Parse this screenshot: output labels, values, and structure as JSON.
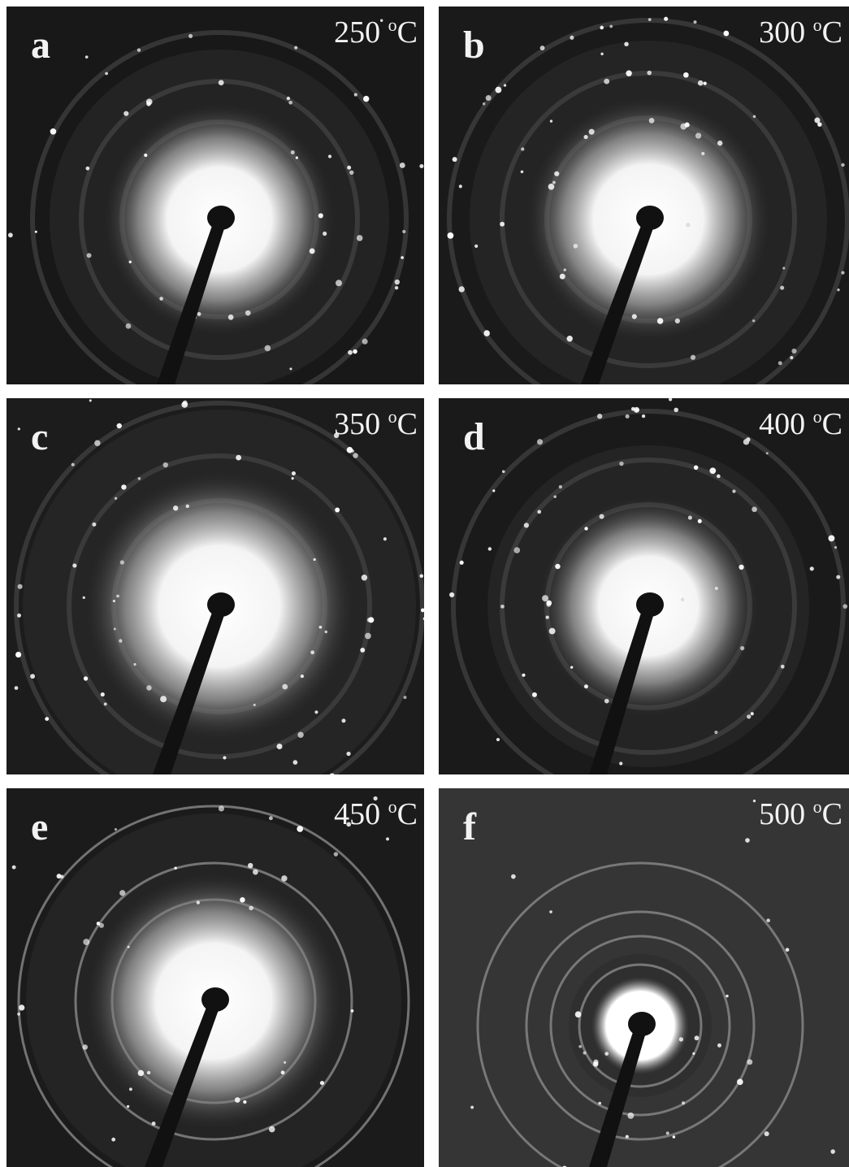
{
  "panels": [
    {
      "letter": "a",
      "temperature": "250",
      "degree": "o",
      "unit": "C"
    },
    {
      "letter": "b",
      "temperature": "300",
      "degree": "o",
      "unit": "C"
    },
    {
      "letter": "c",
      "temperature": "350",
      "degree": "o",
      "unit": "C"
    },
    {
      "letter": "d",
      "temperature": "400",
      "degree": "o",
      "unit": "C"
    },
    {
      "letter": "e",
      "temperature": "450",
      "degree": "o",
      "unit": "C"
    },
    {
      "letter": "f",
      "temperature": "500",
      "degree": "o",
      "unit": "C"
    }
  ]
}
